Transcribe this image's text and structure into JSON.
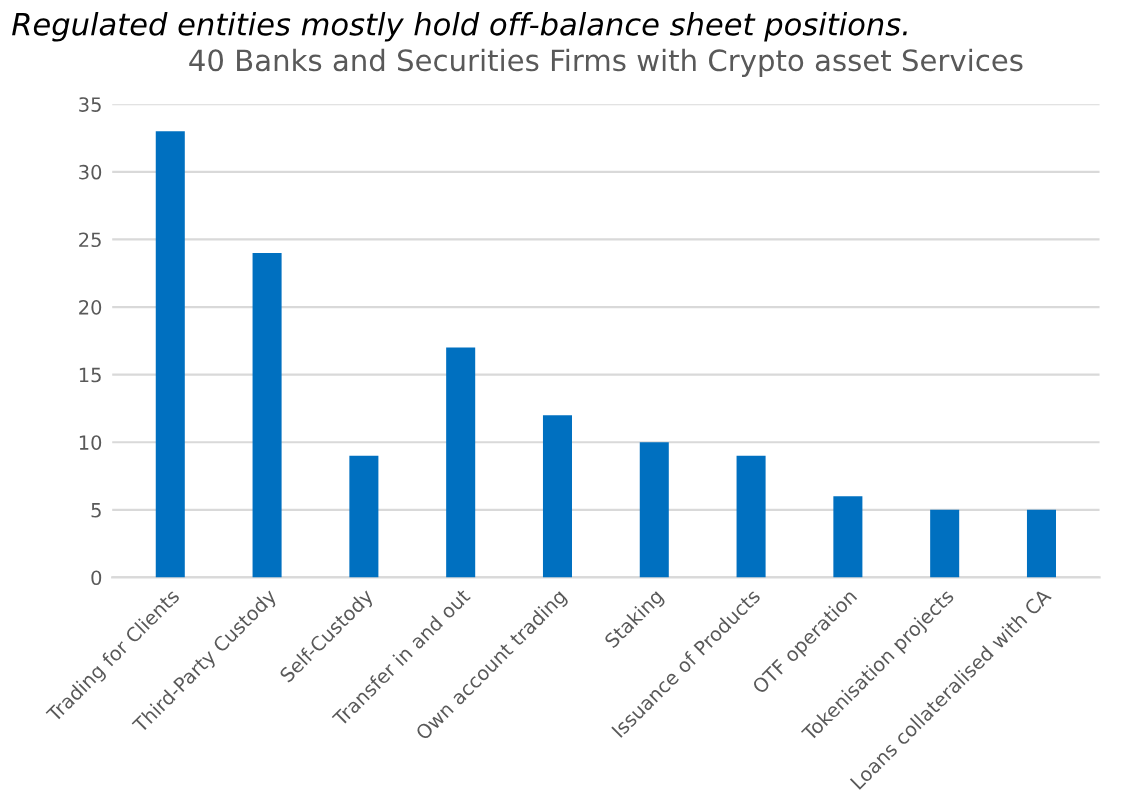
{
  "chart_data": {
    "type": "bar",
    "title": "40 Banks and Securities Firms with Crypto asset Services",
    "annotations": [
      "Regulated entities mostly hold off-balance sheet positions."
    ],
    "categories": [
      "Trading for Clients",
      "Third-Party Custody",
      "Self-Custody",
      "Transfer in and out",
      "Own account trading",
      "Staking",
      "Issuance of Products",
      "OTF operation",
      "Tokenisation projects",
      "Loans collateralised with CA"
    ],
    "values": [
      33,
      24,
      9,
      17,
      12,
      10,
      9,
      6,
      5,
      5
    ],
    "color": "#0070c0",
    "ylim": [
      0,
      35
    ],
    "yticks": [
      0,
      5,
      10,
      15,
      20,
      25,
      30,
      35
    ],
    "grid": "y"
  }
}
